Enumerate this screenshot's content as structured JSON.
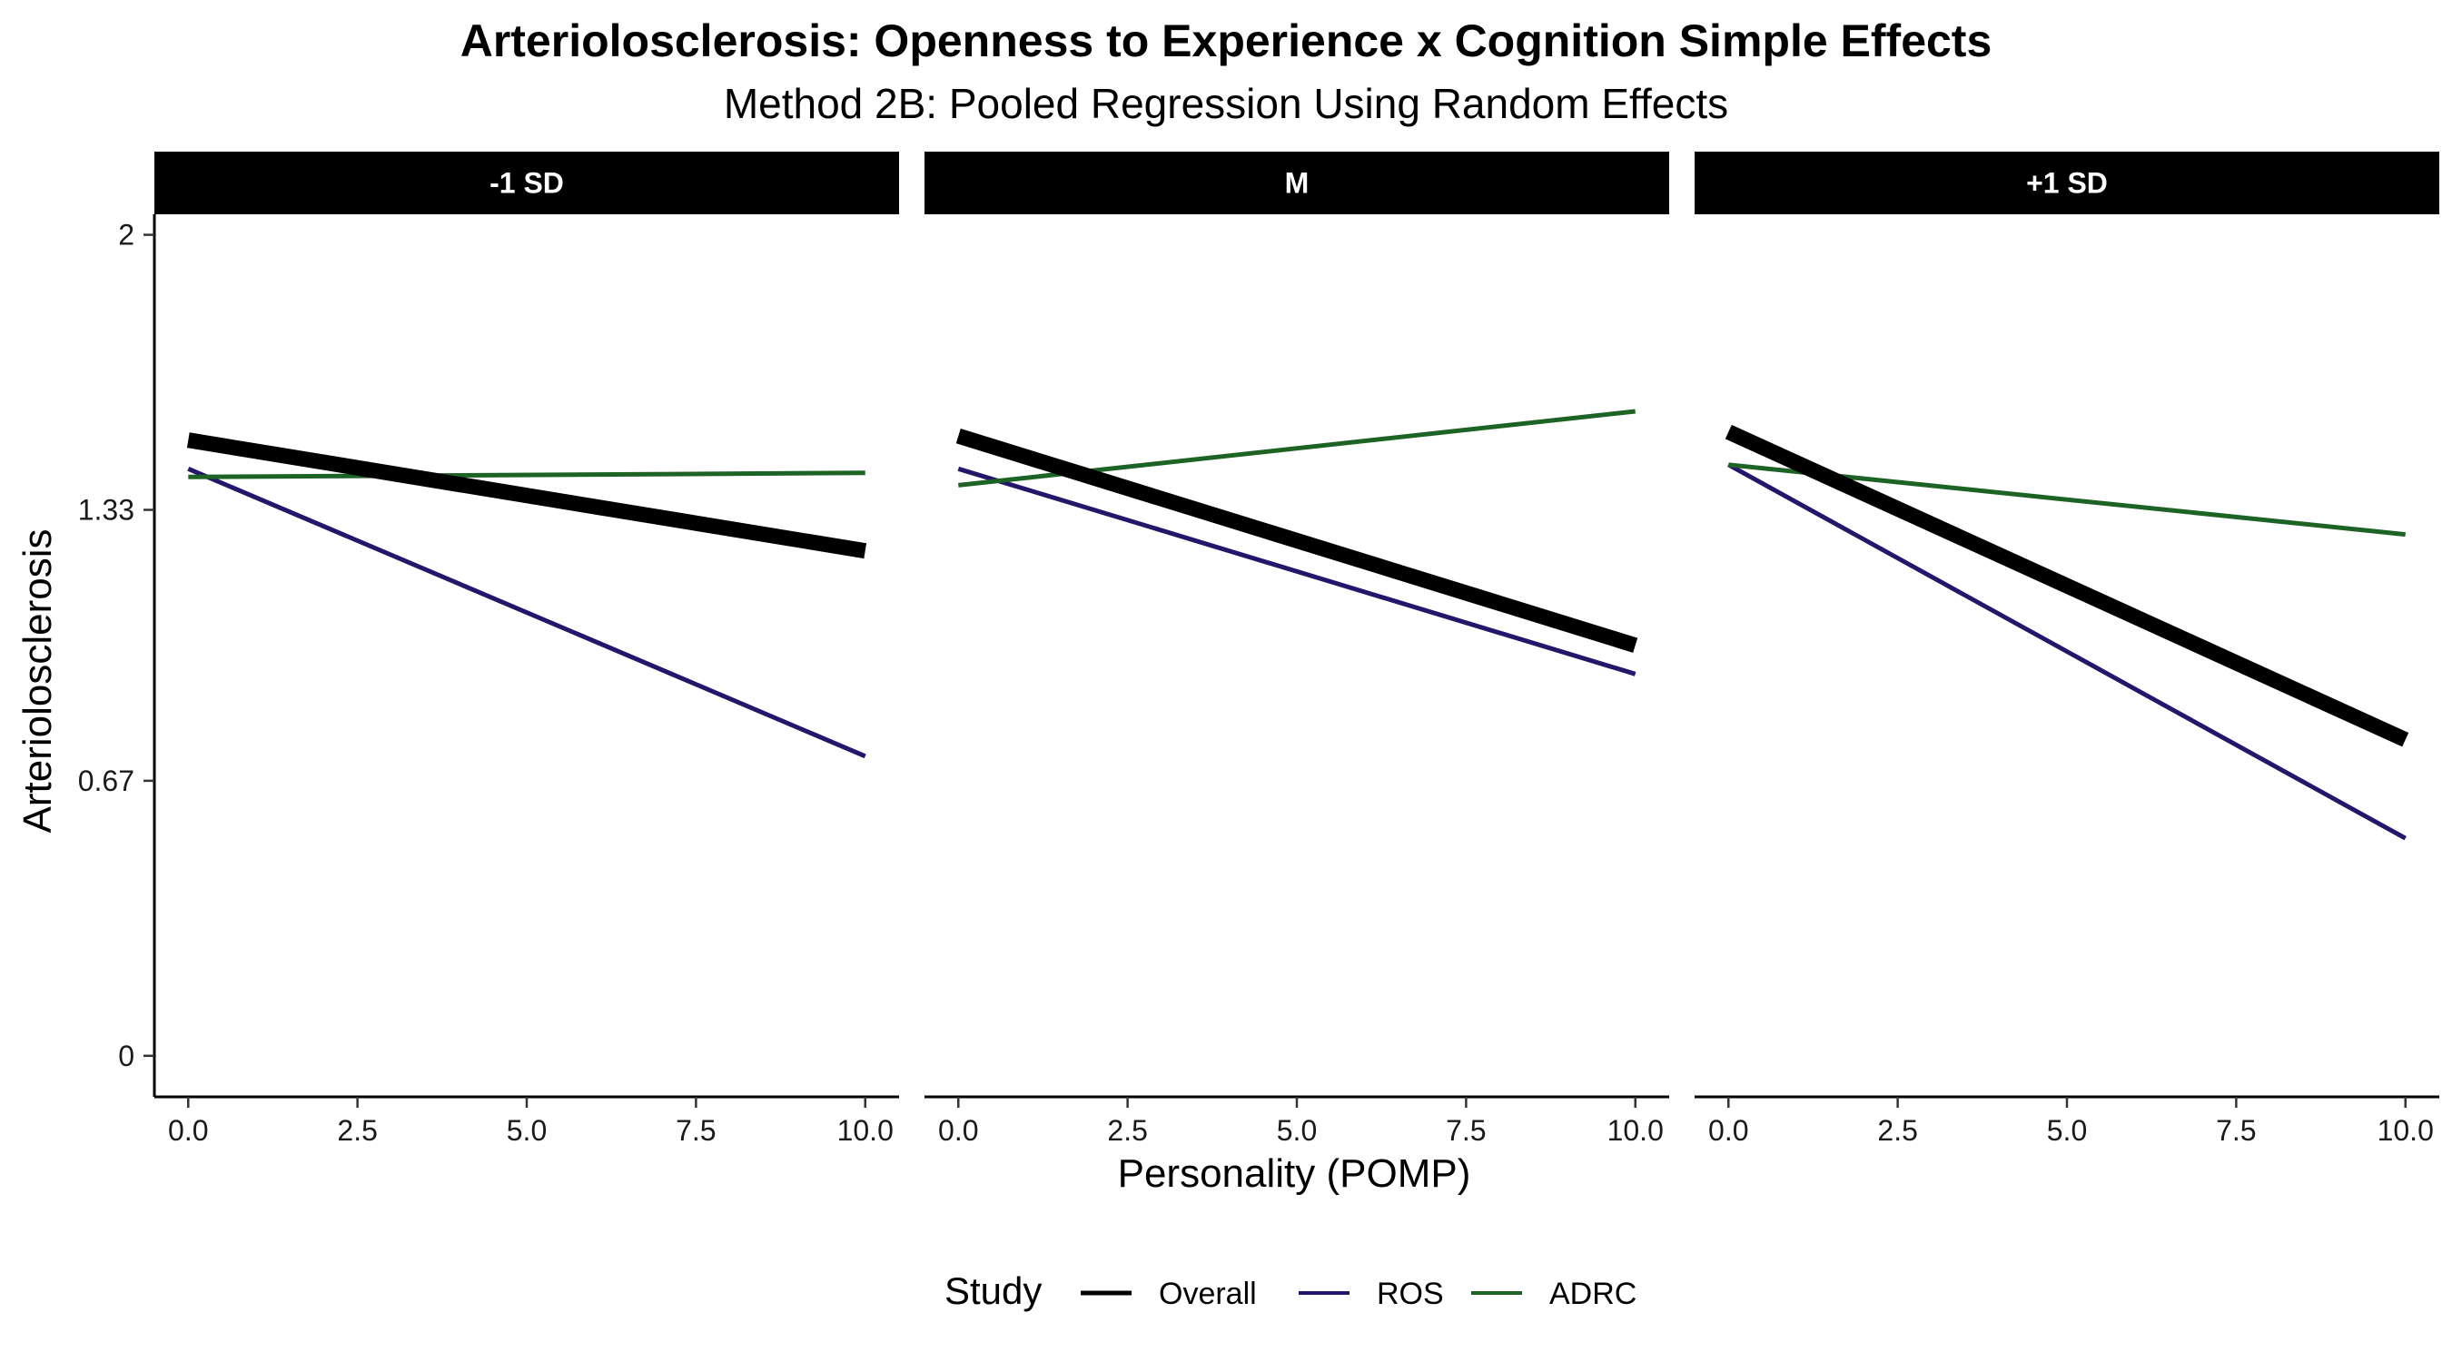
{
  "chart_data": {
    "type": "line",
    "title": "Arteriolosclerosis: Openness to Experience x Cognition Simple Effects",
    "subtitle": "Method 2B: Pooled Regression Using Random Effects",
    "xlabel": "Personality (POMP)",
    "ylabel": "Arteriolosclerosis",
    "xlim": [
      -0.5,
      10.5
    ],
    "ylim": [
      -0.1,
      2.05
    ],
    "x_ticks": [
      0,
      2.5,
      5,
      7.5,
      10
    ],
    "x_tick_labels": [
      "0.0",
      "2.5",
      "5.0",
      "7.5",
      "10.0"
    ],
    "y_ticks": [
      0,
      0.67,
      1.33,
      2
    ],
    "y_tick_labels": [
      "0",
      "0.67",
      "1.33",
      "2"
    ],
    "grid": false,
    "legend_title": "Study",
    "legend_position": "bottom",
    "facets": [
      {
        "label": "-1 SD",
        "series": [
          {
            "name": "Overall",
            "color": "#000000",
            "x": [
              0,
              10
            ],
            "y": [
              1.5,
              1.23
            ]
          },
          {
            "name": "ROS",
            "color": "#23166b",
            "x": [
              0,
              10
            ],
            "y": [
              1.43,
              0.73
            ]
          },
          {
            "name": "ADRC",
            "color": "#1d6326",
            "x": [
              0,
              10
            ],
            "y": [
              1.41,
              1.42
            ]
          }
        ]
      },
      {
        "label": "M",
        "series": [
          {
            "name": "Overall",
            "color": "#000000",
            "x": [
              0,
              10
            ],
            "y": [
              1.51,
              1.0
            ]
          },
          {
            "name": "ROS",
            "color": "#23166b",
            "x": [
              0,
              10
            ],
            "y": [
              1.43,
              0.93
            ]
          },
          {
            "name": "ADRC",
            "color": "#1d6326",
            "x": [
              0,
              10
            ],
            "y": [
              1.39,
              1.57
            ]
          }
        ]
      },
      {
        "label": "+1 SD",
        "series": [
          {
            "name": "Overall",
            "color": "#000000",
            "x": [
              0,
              10
            ],
            "y": [
              1.52,
              0.77
            ]
          },
          {
            "name": "ROS",
            "color": "#23166b",
            "x": [
              0,
              10
            ],
            "y": [
              1.44,
              0.53
            ]
          },
          {
            "name": "ADRC",
            "color": "#1d6326",
            "x": [
              0,
              10
            ],
            "y": [
              1.44,
              1.27
            ]
          }
        ]
      }
    ],
    "legend": [
      {
        "name": "Overall",
        "color": "#000000"
      },
      {
        "name": "ROS",
        "color": "#23166b"
      },
      {
        "name": "ADRC",
        "color": "#1d6326"
      }
    ]
  }
}
